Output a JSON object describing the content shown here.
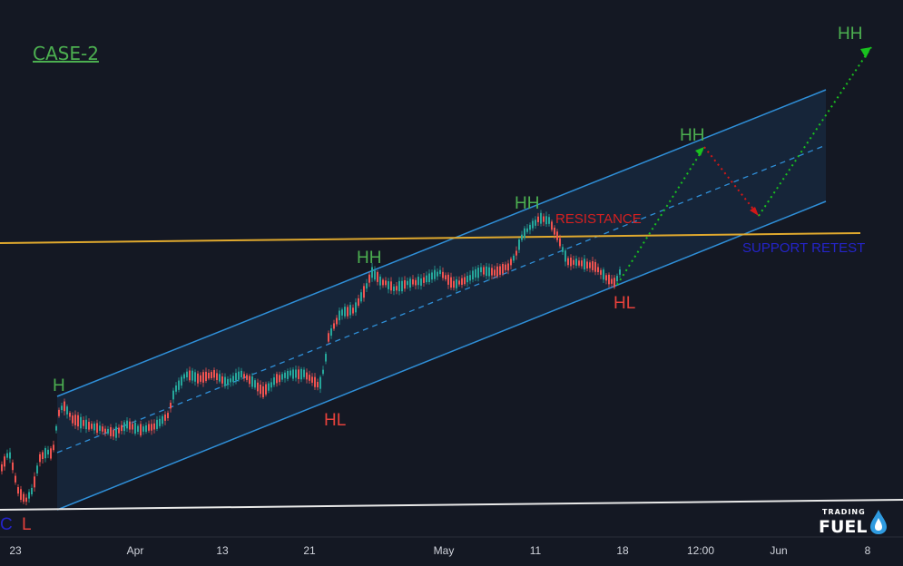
{
  "title": "CASE-2",
  "colors": {
    "background": "#141823",
    "channel": "#2f8fd8",
    "channel_fill": "#16283d",
    "resistance_line": "#e0a92e",
    "base_line": "#e8e8e8",
    "label_high": "#4caf50",
    "label_low": "#e5413b",
    "projection_up": "#19c11f",
    "projection_down": "#d01818",
    "resistance_text": "#d62020",
    "support_text": "#2424c8",
    "candle_up": "#26a69a",
    "candle_down": "#ef5350",
    "axis_text": "#d1d4dc"
  },
  "chart_data": {
    "type": "candlestick",
    "x_ticks": [
      "23",
      "Apr",
      "13",
      "21",
      "May",
      "11",
      "18",
      "12:00",
      "Jun",
      "8"
    ],
    "labels": {
      "h": "H",
      "hh_1": "HH",
      "hh_2": "HH",
      "hh_3": "HH",
      "hh_4": "HH",
      "hl_1": "HL",
      "hl_2": "HL",
      "l": "L",
      "c": "C",
      "resistance": "RESISTANCE",
      "support": "SUPPORT RETEST"
    },
    "annotations": [
      "ascending channel",
      "horizontal resistance line",
      "projected path HL → HH → support retest → HH"
    ]
  },
  "logo": {
    "line1": "TRADING",
    "line2": "FUEL"
  }
}
